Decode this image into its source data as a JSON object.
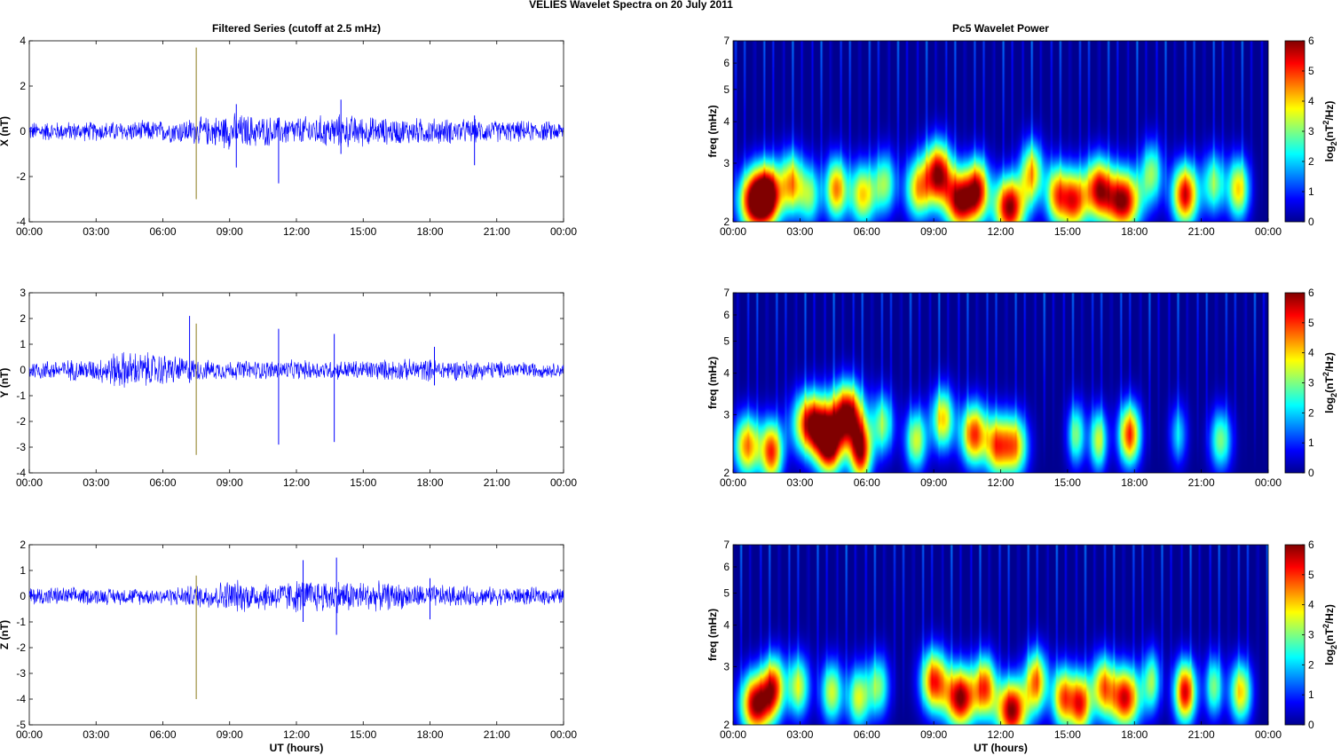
{
  "figure": {
    "suptitle": "VELIES Wavelet Spectra on 20 July      2011"
  },
  "colors": {
    "trace": "#0000ff",
    "spike": "#8a7a1a",
    "jet": [
      "#00008f",
      "#0000ff",
      "#00ffff",
      "#ffff00",
      "#ff0000",
      "#800000"
    ]
  },
  "chart_data": [
    {
      "type": "line",
      "title": "Filtered Series (cutoff at 2.5 mHz)",
      "xlabel": "",
      "ylabel": "X (nT)",
      "xlim": [
        0,
        24
      ],
      "ylim": [
        -4,
        4
      ],
      "xticks": [
        "00:00",
        "03:00",
        "06:00",
        "09:00",
        "12:00",
        "15:00",
        "18:00",
        "21:00",
        "00:00"
      ],
      "yticks": [
        "4",
        "2",
        "0",
        "-2",
        "-4"
      ],
      "ytick_values": [
        4,
        2,
        0,
        -2,
        -4
      ],
      "series": [
        {
          "amplitude_profile": [
            [
              0,
              0.4
            ],
            [
              3,
              0.4
            ],
            [
              6,
              0.45
            ],
            [
              8,
              0.6
            ],
            [
              9,
              0.75
            ],
            [
              11,
              0.6
            ],
            [
              12,
              0.6
            ],
            [
              14,
              0.7
            ],
            [
              16,
              0.55
            ],
            [
              18,
              0.55
            ],
            [
              21,
              0.45
            ],
            [
              24,
              0.4
            ]
          ],
          "spikes": [
            [
              7.5,
              3.7,
              -3.0
            ],
            [
              11.2,
              0.6,
              -2.3
            ],
            [
              9.3,
              1.2,
              -1.6
            ],
            [
              14,
              1.4,
              -1.0
            ],
            [
              20,
              0.7,
              -1.5
            ]
          ]
        }
      ]
    },
    {
      "type": "heatmap",
      "title": "Pc5 Wavelet Power",
      "xlabel": "",
      "ylabel": "freq (mHz)",
      "xlim": [
        0,
        24
      ],
      "ylim_mhz": [
        2,
        7
      ],
      "scale": "log",
      "xticks": [
        "00:00",
        "03:00",
        "06:00",
        "09:00",
        "12:00",
        "15:00",
        "18:00",
        "21:00",
        "00:00"
      ],
      "yticks": [
        "7",
        "6",
        "5",
        "4",
        "3",
        "2"
      ],
      "ytick_values": [
        7,
        6,
        5,
        4,
        3,
        2
      ],
      "colorbar": {
        "label_prefix": "log",
        "label_sub": "2",
        "label_mid": "(nT",
        "label_sup": "2",
        "label_suffix": "/Hz)",
        "ticks": [
          "6",
          "5",
          "4",
          "3",
          "2",
          "1",
          "0"
        ],
        "range": [
          0,
          6
        ]
      },
      "blobs": [
        [
          0.9,
          2.3,
          0.7,
          6
        ],
        [
          1.6,
          2.4,
          0.6,
          5.5
        ],
        [
          2.6,
          2.6,
          0.5,
          4
        ],
        [
          3.4,
          2.4,
          0.5,
          3
        ],
        [
          4.6,
          2.5,
          0.5,
          4.5
        ],
        [
          5.8,
          2.4,
          0.6,
          4
        ],
        [
          6.8,
          2.6,
          0.5,
          3
        ],
        [
          8.3,
          2.5,
          0.6,
          4
        ],
        [
          9.2,
          2.8,
          0.6,
          5.5
        ],
        [
          10.2,
          2.3,
          0.7,
          6
        ],
        [
          11.0,
          2.5,
          0.5,
          4.5
        ],
        [
          12.4,
          2.2,
          0.7,
          6
        ],
        [
          13.4,
          2.8,
          0.5,
          4
        ],
        [
          14.5,
          2.4,
          0.5,
          4
        ],
        [
          15.3,
          2.3,
          0.6,
          5
        ],
        [
          16.4,
          2.5,
          0.6,
          5
        ],
        [
          17.5,
          2.3,
          0.8,
          6
        ],
        [
          18.8,
          2.8,
          0.5,
          3
        ],
        [
          20.3,
          2.4,
          0.6,
          5.5
        ],
        [
          21.6,
          2.6,
          0.5,
          3
        ],
        [
          22.7,
          2.5,
          0.5,
          4
        ]
      ]
    },
    {
      "type": "line",
      "title": "",
      "xlabel": "",
      "ylabel": "Y (nT)",
      "xlim": [
        0,
        24
      ],
      "ylim": [
        -4,
        3
      ],
      "xticks": [
        "00:00",
        "03:00",
        "06:00",
        "09:00",
        "12:00",
        "15:00",
        "18:00",
        "21:00",
        "00:00"
      ],
      "yticks": [
        "3",
        "2",
        "1",
        "0",
        "-1",
        "-2",
        "-3",
        "-4"
      ],
      "ytick_values": [
        3,
        2,
        1,
        0,
        -1,
        -2,
        -3,
        -4
      ],
      "series": [
        {
          "amplitude_profile": [
            [
              0,
              0.35
            ],
            [
              3,
              0.4
            ],
            [
              4,
              0.7
            ],
            [
              6,
              0.6
            ],
            [
              8,
              0.35
            ],
            [
              11,
              0.35
            ],
            [
              14,
              0.35
            ],
            [
              18,
              0.4
            ],
            [
              24,
              0.25
            ]
          ],
          "spikes": [
            [
              7.5,
              1.8,
              -3.3
            ],
            [
              7.2,
              2.1,
              -0.5
            ],
            [
              11.2,
              1.6,
              -2.9
            ],
            [
              13.7,
              1.4,
              -2.8
            ],
            [
              18.2,
              0.9,
              -0.6
            ]
          ]
        }
      ]
    },
    {
      "type": "heatmap",
      "title": "",
      "xlabel": "",
      "ylabel": "freq (mHz)",
      "xlim": [
        0,
        24
      ],
      "ylim_mhz": [
        2,
        7
      ],
      "scale": "log",
      "xticks": [
        "00:00",
        "03:00",
        "06:00",
        "09:00",
        "12:00",
        "15:00",
        "18:00",
        "21:00",
        "00:00"
      ],
      "yticks": [
        "7",
        "6",
        "5",
        "4",
        "3",
        "2"
      ],
      "ytick_values": [
        7,
        6,
        5,
        4,
        3,
        2
      ],
      "colorbar": {
        "label_prefix": "log",
        "label_sub": "2",
        "label_mid": "(nT",
        "label_sup": "2",
        "label_suffix": "/Hz)",
        "ticks": [
          "6",
          "5",
          "4",
          "3",
          "2",
          "1",
          "0"
        ],
        "range": [
          0,
          6
        ]
      },
      "blobs": [
        [
          0.6,
          2.4,
          0.6,
          4.5
        ],
        [
          1.7,
          2.3,
          0.5,
          5
        ],
        [
          3.5,
          2.8,
          0.8,
          6
        ],
        [
          4.3,
          2.4,
          0.6,
          5.5
        ],
        [
          5.1,
          3.0,
          0.7,
          6
        ],
        [
          5.7,
          2.3,
          0.5,
          5.5
        ],
        [
          6.7,
          2.8,
          0.5,
          3
        ],
        [
          8.2,
          2.5,
          0.5,
          3.5
        ],
        [
          9.4,
          2.9,
          0.5,
          4
        ],
        [
          10.8,
          2.6,
          0.6,
          5
        ],
        [
          11.8,
          2.4,
          0.5,
          4
        ],
        [
          12.6,
          2.4,
          0.6,
          4.5
        ],
        [
          15.4,
          2.6,
          0.4,
          3
        ],
        [
          16.4,
          2.5,
          0.4,
          3.5
        ],
        [
          17.8,
          2.6,
          0.5,
          5
        ],
        [
          20.0,
          2.6,
          0.4,
          2
        ],
        [
          21.9,
          2.5,
          0.5,
          3
        ]
      ]
    },
    {
      "type": "line",
      "title": "",
      "xlabel": "UT (hours)",
      "ylabel": "Z (nT)",
      "xlim": [
        0,
        24
      ],
      "ylim": [
        -5,
        2
      ],
      "xticks": [
        "00:00",
        "03:00",
        "06:00",
        "09:00",
        "12:00",
        "15:00",
        "18:00",
        "21:00",
        "00:00"
      ],
      "yticks": [
        "2",
        "1",
        "0",
        "-1",
        "-2",
        "-3",
        "-4",
        "-5"
      ],
      "ytick_values": [
        2,
        1,
        0,
        -1,
        -2,
        -3,
        -4,
        -5
      ],
      "series": [
        {
          "amplitude_profile": [
            [
              0,
              0.35
            ],
            [
              3,
              0.3
            ],
            [
              6,
              0.3
            ],
            [
              8,
              0.45
            ],
            [
              9,
              0.6
            ],
            [
              11,
              0.5
            ],
            [
              12,
              0.6
            ],
            [
              14,
              0.6
            ],
            [
              17,
              0.45
            ],
            [
              20,
              0.35
            ],
            [
              24,
              0.3
            ]
          ],
          "spikes": [
            [
              7.5,
              0.8,
              -4.0
            ],
            [
              13.8,
              1.5,
              -1.5
            ],
            [
              12.3,
              1.4,
              -1.0
            ],
            [
              18.0,
              0.7,
              -0.9
            ]
          ]
        }
      ]
    },
    {
      "type": "heatmap",
      "title": "",
      "xlabel": "UT (hours)",
      "ylabel": "freq (mHz)",
      "xlim": [
        0,
        24
      ],
      "ylim_mhz": [
        2,
        7
      ],
      "scale": "log",
      "xticks": [
        "00:00",
        "03:00",
        "06:00",
        "09:00",
        "12:00",
        "15:00",
        "18:00",
        "21:00",
        "00:00"
      ],
      "yticks": [
        "7",
        "6",
        "5",
        "4",
        "3",
        "2"
      ],
      "ytick_values": [
        7,
        6,
        5,
        4,
        3,
        2
      ],
      "colorbar": {
        "label_prefix": "log",
        "label_sub": "2",
        "label_mid": "(nT",
        "label_sup": "2",
        "label_suffix": "/Hz)",
        "ticks": [
          "6",
          "5",
          "4",
          "3",
          "2",
          "1",
          "0"
        ],
        "range": [
          0,
          6
        ]
      },
      "blobs": [
        [
          1.0,
          2.3,
          0.7,
          6
        ],
        [
          1.8,
          2.6,
          0.5,
          4.5
        ],
        [
          2.9,
          2.6,
          0.5,
          3.5
        ],
        [
          4.4,
          2.5,
          0.5,
          3.5
        ],
        [
          5.6,
          2.4,
          0.5,
          3.5
        ],
        [
          6.5,
          2.6,
          0.5,
          3
        ],
        [
          9.0,
          2.7,
          0.6,
          5
        ],
        [
          10.2,
          2.4,
          0.7,
          6
        ],
        [
          11.3,
          2.6,
          0.5,
          4.5
        ],
        [
          12.5,
          2.2,
          0.7,
          6
        ],
        [
          13.6,
          2.7,
          0.5,
          4.5
        ],
        [
          14.8,
          2.4,
          0.5,
          4.5
        ],
        [
          15.6,
          2.3,
          0.5,
          5
        ],
        [
          16.6,
          2.6,
          0.5,
          4
        ],
        [
          17.6,
          2.4,
          0.7,
          5.5
        ],
        [
          18.8,
          2.7,
          0.4,
          3
        ],
        [
          20.3,
          2.5,
          0.5,
          5.5
        ],
        [
          21.6,
          2.6,
          0.4,
          3
        ],
        [
          22.8,
          2.5,
          0.5,
          4
        ]
      ]
    }
  ]
}
